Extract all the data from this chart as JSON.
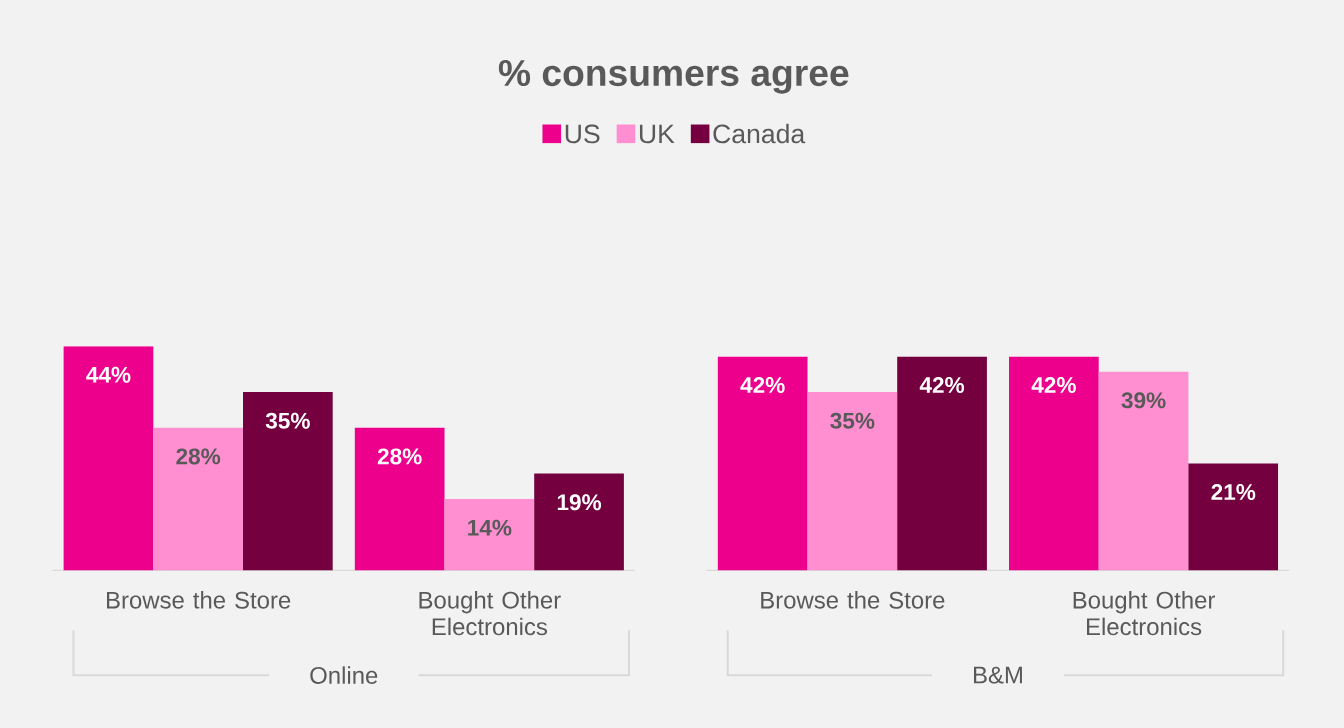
{
  "chart_data": [
    {
      "type": "bar",
      "title": "% consumers agree",
      "xlabel": "Online",
      "legend": "top",
      "categories": [
        "Browse the Store",
        "Bought Other Electronics"
      ],
      "tick_labels": "x",
      "series": [
        {
          "name": "US",
          "color": "#ec008c",
          "values": [
            44,
            28
          ],
          "value_labels": [
            "44%",
            "28%"
          ]
        },
        {
          "name": "UK",
          "color": "#ff8fd0",
          "values": [
            28,
            14
          ],
          "value_labels": [
            "28%",
            "14%"
          ]
        },
        {
          "name": "Canada",
          "color": "#74003f",
          "values": [
            35,
            19
          ],
          "value_labels": [
            "35%",
            "19%"
          ]
        }
      ]
    },
    {
      "type": "bar",
      "xlabel": "B&M",
      "categories": [
        "Browse the Store",
        "Bought Other Electronics"
      ],
      "tick_labels": "x",
      "series": [
        {
          "color": "#ec008c",
          "values": [
            42,
            42
          ],
          "value_labels": [
            "42%",
            "42%"
          ]
        },
        {
          "color": "#ff8fd0",
          "values": [
            35,
            39
          ],
          "value_labels": [
            "35%",
            "39%"
          ]
        },
        {
          "color": "#74003f",
          "values": [
            42,
            21
          ],
          "value_labels": [
            "42%",
            "21%"
          ]
        }
      ]
    }
  ]
}
